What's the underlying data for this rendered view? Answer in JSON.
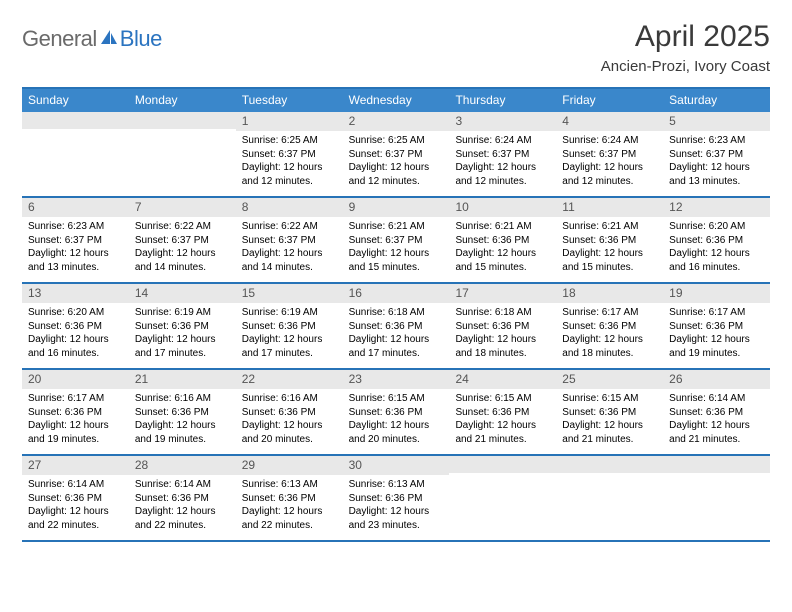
{
  "brand": {
    "part1": "General",
    "part2": "Blue"
  },
  "title": "April 2025",
  "subtitle": "Ancien-Prozi, Ivory Coast",
  "colors": {
    "accent_bar": "#2773b7",
    "header_bg": "#3a87cb",
    "header_text": "#ffffff",
    "daynum_bg": "#e8e8e8",
    "daynum_text": "#555555",
    "body_text": "#000000",
    "page_bg": "#ffffff",
    "logo_gray": "#6a6a6a",
    "logo_blue": "#2b74c0"
  },
  "typography": {
    "title_fontsize": 30,
    "subtitle_fontsize": 15,
    "dayheader_fontsize": 12,
    "daynum_fontsize": 12,
    "body_fontsize": 10,
    "font_family": "Arial"
  },
  "layout": {
    "columns": 7,
    "rows": 5,
    "cell_min_height": 84
  },
  "day_names": [
    "Sunday",
    "Monday",
    "Tuesday",
    "Wednesday",
    "Thursday",
    "Friday",
    "Saturday"
  ],
  "weeks": [
    [
      {
        "n": "",
        "sunrise": "",
        "sunset": "",
        "daylight": ""
      },
      {
        "n": "",
        "sunrise": "",
        "sunset": "",
        "daylight": ""
      },
      {
        "n": "1",
        "sunrise": "6:25 AM",
        "sunset": "6:37 PM",
        "daylight": "12 hours and 12 minutes."
      },
      {
        "n": "2",
        "sunrise": "6:25 AM",
        "sunset": "6:37 PM",
        "daylight": "12 hours and 12 minutes."
      },
      {
        "n": "3",
        "sunrise": "6:24 AM",
        "sunset": "6:37 PM",
        "daylight": "12 hours and 12 minutes."
      },
      {
        "n": "4",
        "sunrise": "6:24 AM",
        "sunset": "6:37 PM",
        "daylight": "12 hours and 12 minutes."
      },
      {
        "n": "5",
        "sunrise": "6:23 AM",
        "sunset": "6:37 PM",
        "daylight": "12 hours and 13 minutes."
      }
    ],
    [
      {
        "n": "6",
        "sunrise": "6:23 AM",
        "sunset": "6:37 PM",
        "daylight": "12 hours and 13 minutes."
      },
      {
        "n": "7",
        "sunrise": "6:22 AM",
        "sunset": "6:37 PM",
        "daylight": "12 hours and 14 minutes."
      },
      {
        "n": "8",
        "sunrise": "6:22 AM",
        "sunset": "6:37 PM",
        "daylight": "12 hours and 14 minutes."
      },
      {
        "n": "9",
        "sunrise": "6:21 AM",
        "sunset": "6:37 PM",
        "daylight": "12 hours and 15 minutes."
      },
      {
        "n": "10",
        "sunrise": "6:21 AM",
        "sunset": "6:36 PM",
        "daylight": "12 hours and 15 minutes."
      },
      {
        "n": "11",
        "sunrise": "6:21 AM",
        "sunset": "6:36 PM",
        "daylight": "12 hours and 15 minutes."
      },
      {
        "n": "12",
        "sunrise": "6:20 AM",
        "sunset": "6:36 PM",
        "daylight": "12 hours and 16 minutes."
      }
    ],
    [
      {
        "n": "13",
        "sunrise": "6:20 AM",
        "sunset": "6:36 PM",
        "daylight": "12 hours and 16 minutes."
      },
      {
        "n": "14",
        "sunrise": "6:19 AM",
        "sunset": "6:36 PM",
        "daylight": "12 hours and 17 minutes."
      },
      {
        "n": "15",
        "sunrise": "6:19 AM",
        "sunset": "6:36 PM",
        "daylight": "12 hours and 17 minutes."
      },
      {
        "n": "16",
        "sunrise": "6:18 AM",
        "sunset": "6:36 PM",
        "daylight": "12 hours and 17 minutes."
      },
      {
        "n": "17",
        "sunrise": "6:18 AM",
        "sunset": "6:36 PM",
        "daylight": "12 hours and 18 minutes."
      },
      {
        "n": "18",
        "sunrise": "6:17 AM",
        "sunset": "6:36 PM",
        "daylight": "12 hours and 18 minutes."
      },
      {
        "n": "19",
        "sunrise": "6:17 AM",
        "sunset": "6:36 PM",
        "daylight": "12 hours and 19 minutes."
      }
    ],
    [
      {
        "n": "20",
        "sunrise": "6:17 AM",
        "sunset": "6:36 PM",
        "daylight": "12 hours and 19 minutes."
      },
      {
        "n": "21",
        "sunrise": "6:16 AM",
        "sunset": "6:36 PM",
        "daylight": "12 hours and 19 minutes."
      },
      {
        "n": "22",
        "sunrise": "6:16 AM",
        "sunset": "6:36 PM",
        "daylight": "12 hours and 20 minutes."
      },
      {
        "n": "23",
        "sunrise": "6:15 AM",
        "sunset": "6:36 PM",
        "daylight": "12 hours and 20 minutes."
      },
      {
        "n": "24",
        "sunrise": "6:15 AM",
        "sunset": "6:36 PM",
        "daylight": "12 hours and 21 minutes."
      },
      {
        "n": "25",
        "sunrise": "6:15 AM",
        "sunset": "6:36 PM",
        "daylight": "12 hours and 21 minutes."
      },
      {
        "n": "26",
        "sunrise": "6:14 AM",
        "sunset": "6:36 PM",
        "daylight": "12 hours and 21 minutes."
      }
    ],
    [
      {
        "n": "27",
        "sunrise": "6:14 AM",
        "sunset": "6:36 PM",
        "daylight": "12 hours and 22 minutes."
      },
      {
        "n": "28",
        "sunrise": "6:14 AM",
        "sunset": "6:36 PM",
        "daylight": "12 hours and 22 minutes."
      },
      {
        "n": "29",
        "sunrise": "6:13 AM",
        "sunset": "6:36 PM",
        "daylight": "12 hours and 22 minutes."
      },
      {
        "n": "30",
        "sunrise": "6:13 AM",
        "sunset": "6:36 PM",
        "daylight": "12 hours and 23 minutes."
      },
      {
        "n": "",
        "sunrise": "",
        "sunset": "",
        "daylight": ""
      },
      {
        "n": "",
        "sunrise": "",
        "sunset": "",
        "daylight": ""
      },
      {
        "n": "",
        "sunrise": "",
        "sunset": "",
        "daylight": ""
      }
    ]
  ],
  "labels": {
    "sunrise": "Sunrise:",
    "sunset": "Sunset:",
    "daylight": "Daylight:"
  }
}
